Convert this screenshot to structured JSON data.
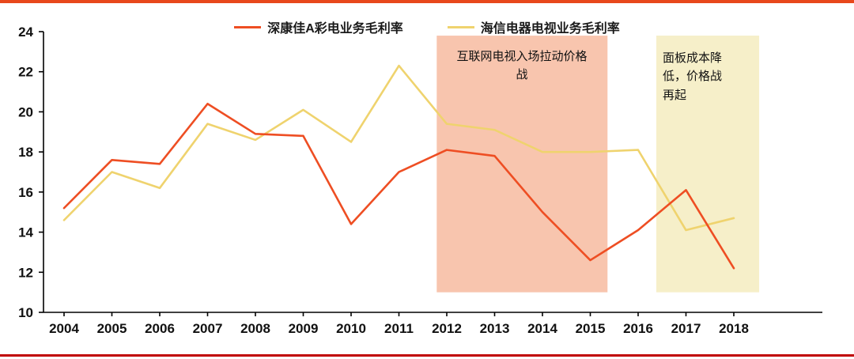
{
  "page": {
    "top_border_color": "#e8481c",
    "bottom_border_color": "#c00000"
  },
  "legend": [
    {
      "id": "konka",
      "label": "深康佳A彩电业务毛利率",
      "color": "#ee4e23"
    },
    {
      "id": "hisense",
      "label": "海信电器电视业务毛利率",
      "color": "#efd36e"
    }
  ],
  "chart_data": {
    "type": "line",
    "x": [
      2004,
      2005,
      2006,
      2007,
      2008,
      2009,
      2010,
      2011,
      2012,
      2013,
      2014,
      2015,
      2016,
      2017,
      2018
    ],
    "series": [
      {
        "id": "konka",
        "name": "深康佳A彩电业务毛利率",
        "color": "#ee4e23",
        "values": [
          15.2,
          17.6,
          17.4,
          20.4,
          18.9,
          18.8,
          14.4,
          17.0,
          18.1,
          17.8,
          15.0,
          12.6,
          14.1,
          16.1,
          12.2
        ]
      },
      {
        "id": "hisense",
        "name": "海信电器电视业务毛利率",
        "color": "#efd36e",
        "values": [
          14.6,
          17.0,
          16.2,
          19.4,
          18.6,
          20.1,
          18.5,
          22.3,
          19.4,
          19.1,
          18.0,
          18.0,
          18.1,
          14.1,
          14.7
        ]
      }
    ],
    "ylim": [
      10,
      24
    ],
    "ytick_step": 2,
    "grid": false,
    "legend_position": "top",
    "regions": [
      {
        "id": "internet-tv-price-war",
        "label": "互联网电视入场拉动价格战",
        "x0": 2011.79,
        "x1": 2015.36,
        "y0": 11.0,
        "y1": 23.8,
        "color": "#f8c5ae"
      },
      {
        "id": "panel-cost-price-war",
        "label": "面板成本降低，价格战再起",
        "x0": 2016.38,
        "x1": 2018.53,
        "y0": 11.0,
        "y1": 23.8,
        "color": "#f6efc9"
      }
    ]
  }
}
